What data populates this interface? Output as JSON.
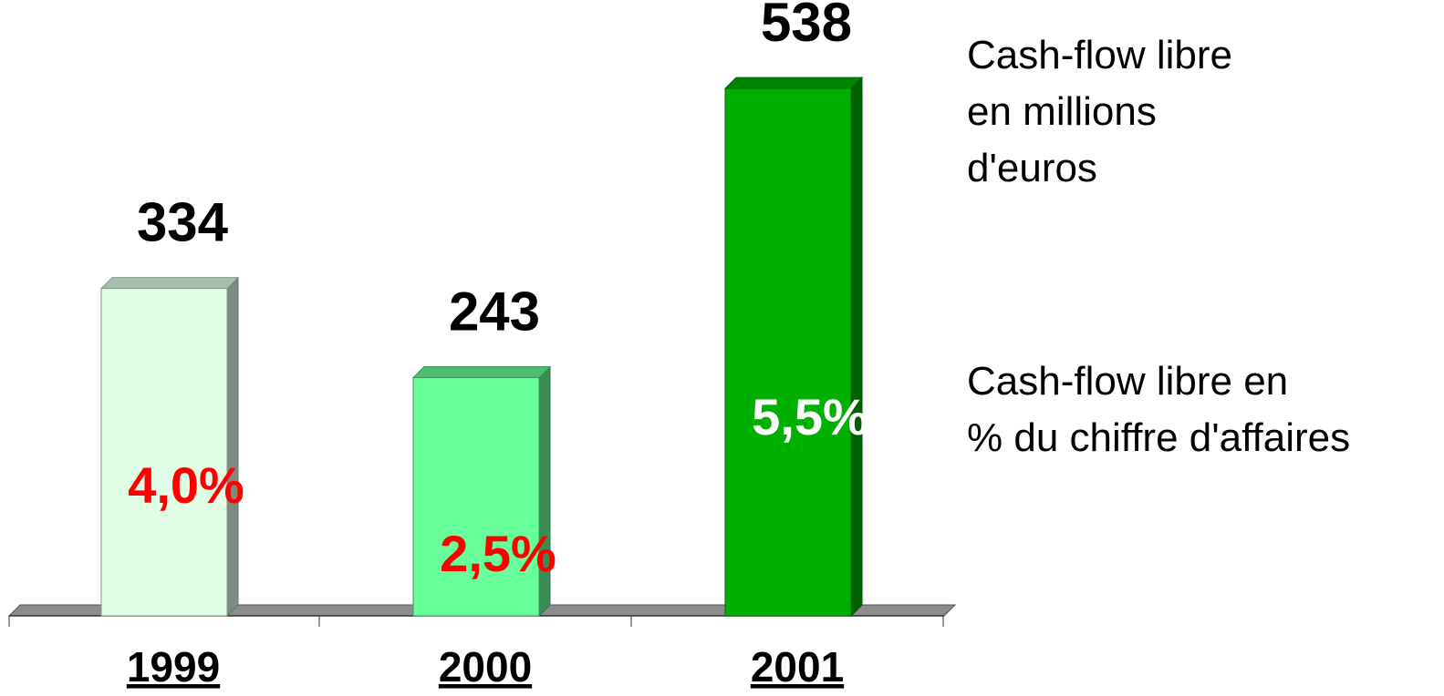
{
  "chart_data": {
    "type": "bar3d",
    "categories": [
      "1999",
      "2000",
      "2001"
    ],
    "series": [
      {
        "name": "Cash-flow libre\nen millions\nd'euros",
        "colors": [
          "#e0fde6",
          "#66ff99",
          "#00b000"
        ],
        "values": [
          334,
          243,
          538
        ]
      },
      {
        "name": "Cash-flow libre en\n% du chiffre d'affaires",
        "colors": [
          "#ff0000",
          "#ff0000",
          "#ffffff"
        ],
        "values": [
          4.0,
          2.5,
          5.5
        ],
        "value_labels": [
          "4,0%",
          "2,5%",
          "5,5%"
        ]
      }
    ]
  }
}
